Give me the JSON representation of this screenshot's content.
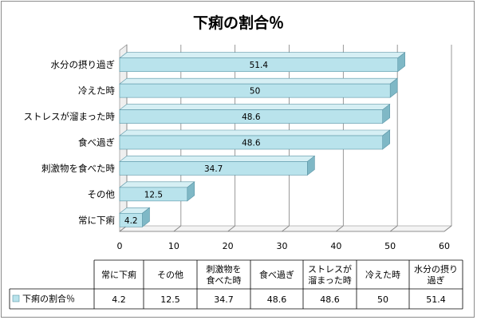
{
  "chart_data": {
    "type": "bar",
    "orientation": "horizontal",
    "style": "3d",
    "title": "下痢の割合％",
    "categories": [
      "常に下痢",
      "その他",
      "刺激物を食べた時",
      "食べ過ぎ",
      "ストレスが溜まった時",
      "冷えた時",
      "水分の摂り過ぎ"
    ],
    "table_headers": [
      [
        "常に下痢"
      ],
      [
        "その他"
      ],
      [
        "刺激物を",
        "食べた時"
      ],
      [
        "食べ過ぎ"
      ],
      [
        "ストレスが",
        "溜まった時"
      ],
      [
        "冷えた時"
      ],
      [
        "水分の摂り",
        "過ぎ"
      ]
    ],
    "series": [
      {
        "name": "下痢の割合％",
        "values": [
          4.2,
          12.5,
          34.7,
          48.6,
          48.6,
          50,
          51.4
        ]
      }
    ],
    "data_labels": [
      "4.2",
      "12.5",
      "34.7",
      "48.6",
      "48.6",
      "50",
      "51.4"
    ],
    "xlim": [
      0,
      60
    ],
    "ticks": [
      0,
      10,
      20,
      30,
      40,
      50,
      60
    ],
    "grid": true,
    "legend": "data-table",
    "colors": {
      "bar_front": "#b9e3ec",
      "bar_top": "#d6eff4",
      "bar_side": "#7fb8c6",
      "bar_edge": "#5a95a6",
      "grid": "#808080"
    }
  }
}
